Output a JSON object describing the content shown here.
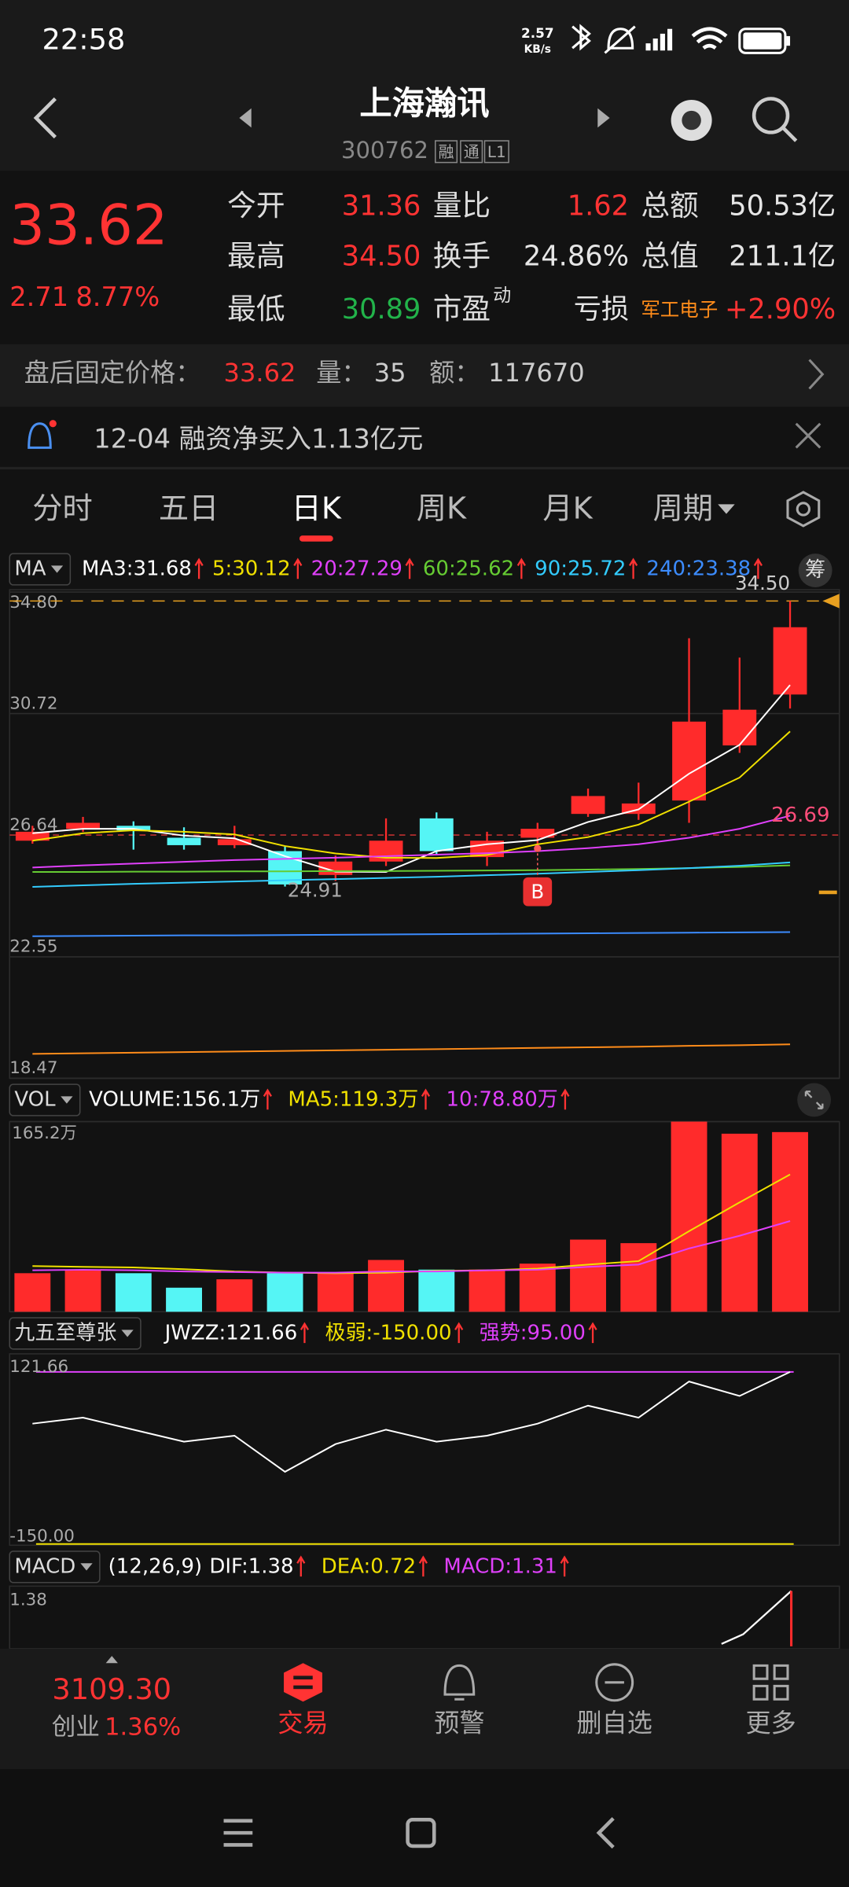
{
  "status_bar": {
    "time": "22:58",
    "net_speed": "2.57",
    "net_unit": "KB/s"
  },
  "header": {
    "title": "上海瀚讯",
    "code": "300762",
    "badges": [
      "融",
      "通",
      "L1"
    ]
  },
  "quote": {
    "price": "33.62",
    "change": "2.71",
    "change_pct": "8.77%",
    "stats": [
      {
        "label": "今开",
        "value": "31.36",
        "color": "#ff3333"
      },
      {
        "label": "量比",
        "value": "1.62",
        "color": "#ff3333"
      },
      {
        "label": "总额",
        "value": "50.53亿",
        "color": "#e6e6e6"
      },
      {
        "label": "最高",
        "value": "34.50",
        "color": "#ff3333"
      },
      {
        "label": "换手",
        "value": "24.86%",
        "color": "#e6e6e6"
      },
      {
        "label": "总值",
        "value": "211.1亿",
        "color": "#e6e6e6"
      },
      {
        "label": "最低",
        "value": "30.89",
        "color": "#22b34a"
      },
      {
        "label": "市盈",
        "sup": "动",
        "value": "亏损",
        "color": "#e6e6e6"
      },
      {
        "label": "军工电子",
        "label_color": "#ff8c1a",
        "value": "+2.90%",
        "color": "#ff3333"
      }
    ]
  },
  "after_hours": {
    "label": "盘后固定价格：",
    "price": "33.62",
    "vol_label": "量：",
    "vol": "35",
    "amt_label": "额：",
    "amt": "117670"
  },
  "notice": {
    "text": "12-04 融资净买入1.13亿元"
  },
  "tabs": {
    "items": [
      "分时",
      "五日",
      "日K",
      "周K",
      "月K",
      "周期"
    ],
    "active": 2
  },
  "kline": {
    "type": "candlestick",
    "selector": "MA",
    "chip": "筹",
    "up_color": "#ff2b2b",
    "down_color": "#55f5f5",
    "ylim": [
      18.47,
      34.8
    ],
    "yticks": [
      {
        "value": 34.8,
        "label": "34.80"
      },
      30.72,
      26.64,
      22.55,
      18.47
    ],
    "candles": [
      {
        "open": 26.45,
        "close": 26.75,
        "high": 26.95,
        "low": 26.35
      },
      {
        "open": 26.85,
        "close": 27.05,
        "high": 27.25,
        "low": 26.75
      },
      {
        "open": 26.95,
        "close": 26.8,
        "high": 27.1,
        "low": 26.15
      },
      {
        "open": 26.55,
        "close": 26.3,
        "high": 26.9,
        "low": 26.15
      },
      {
        "open": 26.3,
        "close": 26.5,
        "high": 26.95,
        "low": 26.2
      },
      {
        "open": 26.1,
        "close": 24.98,
        "high": 26.25,
        "low": 24.91
      },
      {
        "open": 25.3,
        "close": 25.75,
        "high": 25.95,
        "low": 25.1
      },
      {
        "open": 25.75,
        "close": 26.45,
        "high": 27.2,
        "low": 25.6
      },
      {
        "open": 27.2,
        "close": 26.1,
        "high": 27.4,
        "low": 26.0
      },
      {
        "open": 25.9,
        "close": 26.45,
        "high": 26.75,
        "low": 25.6
      },
      {
        "open": 26.55,
        "close": 26.85,
        "high": 27.05,
        "low": 26.3
      },
      {
        "open": 27.35,
        "close": 27.95,
        "high": 28.2,
        "low": 27.25
      },
      {
        "open": 27.35,
        "close": 27.7,
        "high": 28.4,
        "low": 27.15
      },
      {
        "open": 27.8,
        "close": 30.45,
        "high": 33.25,
        "low": 27.05
      },
      {
        "open": 29.65,
        "close": 30.85,
        "high": 32.6,
        "low": 29.4
      },
      {
        "open": 31.36,
        "close": 33.62,
        "high": 34.5,
        "low": 30.89
      }
    ],
    "ma": [
      {
        "legend": "MA3:31.68",
        "color": "#ffffff",
        "values": [
          26.7,
          26.85,
          26.85,
          26.62,
          26.53,
          25.93,
          25.41,
          25.4,
          26.1,
          26.33,
          26.47,
          27.08,
          27.5,
          28.7,
          29.67,
          31.68
        ]
      },
      {
        "legend": "5:30.12",
        "color": "#f0e000",
        "values": [
          26.45,
          26.7,
          26.8,
          26.75,
          26.66,
          26.27,
          26.02,
          25.88,
          25.87,
          25.97,
          26.33,
          26.57,
          26.99,
          27.76,
          28.57,
          30.12
        ]
      },
      {
        "legend": "20:27.29",
        "color": "#e040fb",
        "values": [
          25.55,
          25.62,
          25.68,
          25.74,
          25.8,
          25.84,
          25.88,
          25.93,
          25.98,
          26.03,
          26.1,
          26.2,
          26.33,
          26.55,
          26.85,
          27.29
        ]
      },
      {
        "legend": "60:25.62",
        "color": "#66cc33",
        "values": [
          25.4,
          25.4,
          25.41,
          25.41,
          25.42,
          25.42,
          25.43,
          25.43,
          25.44,
          25.45,
          25.46,
          25.48,
          25.5,
          25.53,
          25.57,
          25.62
        ]
      },
      {
        "legend": "90:25.72",
        "color": "#33ccff",
        "values": [
          24.9,
          24.95,
          25.0,
          25.04,
          25.08,
          25.12,
          25.16,
          25.2,
          25.24,
          25.29,
          25.34,
          25.4,
          25.46,
          25.53,
          25.61,
          25.72
        ]
      },
      {
        "legend": "240:23.38",
        "color": "#3c8cff",
        "values": [
          23.24,
          23.25,
          23.26,
          23.27,
          23.27,
          23.28,
          23.29,
          23.3,
          23.31,
          23.32,
          23.33,
          23.34,
          23.35,
          23.36,
          23.37,
          23.38
        ]
      },
      {
        "color": "#ff8c1a",
        "values": [
          19.29,
          19.31,
          19.33,
          19.35,
          19.37,
          19.39,
          19.41,
          19.43,
          19.45,
          19.47,
          19.49,
          19.51,
          19.53,
          19.56,
          19.58,
          19.61
        ]
      }
    ],
    "high_label": "34.50",
    "low_label": "24.91",
    "ma_label": "26.69",
    "marker": "B"
  },
  "volume": {
    "selector": "VOL",
    "legend": [
      "VOLUME:156.1万",
      "MA5:119.3万",
      "10:78.80万"
    ],
    "legend_colors": [
      "#ffffff",
      "#f0e000",
      "#e040fb"
    ],
    "ylim": [
      0,
      165.2
    ],
    "yticks": [
      {
        "value": 165.2,
        "label": "165.2万"
      }
    ],
    "values": [
      33.5,
      36.6,
      33.5,
      20.9,
      28.2,
      33.5,
      33.5,
      45,
      36.6,
      36.6,
      41.8,
      62.7,
      59.6,
      165.2,
      154.7,
      156.1
    ],
    "ma5": [
      39.7,
      39,
      38.5,
      37,
      35,
      34,
      33.5,
      34,
      35.5,
      36,
      37.5,
      41,
      44,
      70,
      95,
      119.3
    ],
    "ma10": [
      36,
      36.5,
      36,
      35,
      34.5,
      34,
      34,
      35,
      35,
      36,
      36.5,
      39,
      41,
      55,
      66,
      78.8
    ]
  },
  "jwzz": {
    "selector": "九五至尊张",
    "legend": [
      "JWZZ:121.66",
      "极弱:-150.00",
      "强势:95.00"
    ],
    "legend_colors": [
      "#ffffff",
      "#f0e000",
      "#e040fb"
    ],
    "ylim": [
      -150,
      121.66
    ],
    "yticks": [
      121.66,
      {
        "value": -150,
        "label": "-150.00"
      }
    ],
    "values": [
      40,
      49.5,
      30.5,
      11.5,
      21,
      -36,
      7.7,
      30.5,
      11.5,
      21,
      40,
      68.5,
      49.5,
      106.5,
      83.7,
      121.66
    ]
  },
  "macd": {
    "selector": "MACD",
    "legend": [
      "(12,26,9)",
      "DIF:1.38",
      "DEA:0.72",
      "MACD:1.31"
    ],
    "legend_colors": [
      "#ffffff",
      "#ffffff",
      "#f0e000",
      "#e040fb"
    ],
    "yticks": [
      {
        "value": 1.38,
        "label": "1.38"
      }
    ]
  },
  "bottom_nav": {
    "index": "3109.30",
    "index_name": "创业",
    "index_change": "1.36%",
    "items": [
      "交易",
      "预警",
      "删自选",
      "更多"
    ]
  }
}
